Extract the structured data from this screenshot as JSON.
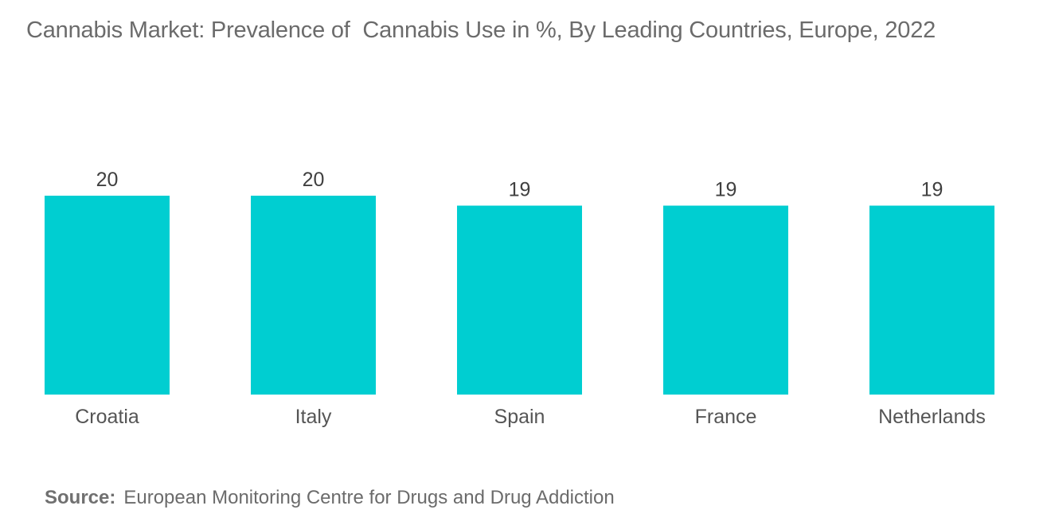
{
  "chart_data": {
    "type": "bar",
    "title": "Cannabis Market: Prevalence of  Cannabis Use in %, By Leading Countries, Europe, 2022",
    "categories": [
      "Croatia",
      "Italy",
      "Spain",
      "France",
      "Netherlands"
    ],
    "values": [
      20,
      20,
      19,
      19,
      19
    ],
    "xlabel": "",
    "ylabel": "",
    "ylim": [
      0,
      20
    ],
    "grid": false,
    "legend": "none",
    "bar_color": "#00ced1"
  },
  "source": {
    "label": "Source:",
    "text": "European Monitoring Centre for Drugs and Drug Addiction"
  }
}
